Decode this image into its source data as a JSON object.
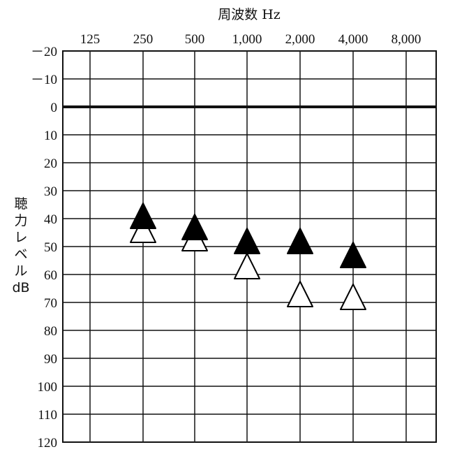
{
  "chart_data": {
    "type": "scatter",
    "title": "",
    "xlabel": "周波数 Hz",
    "ylabel_lines": [
      "聴",
      "力",
      "レ",
      "ベ",
      "ル",
      "dB"
    ],
    "x_categories": [
      "125",
      "250",
      "500",
      "1,000",
      "2,000",
      "4,000",
      "8,000"
    ],
    "y_ticks": [
      "－20",
      "－10",
      "0",
      "10",
      "20",
      "30",
      "40",
      "50",
      "60",
      "70",
      "80",
      "90",
      "100",
      "110",
      "120"
    ],
    "ylim": [
      -20,
      120
    ],
    "y_inverted": true,
    "grid": true,
    "reference_line": 0,
    "series": [
      {
        "marker": "filled-triangle",
        "color": "#000000",
        "points": [
          {
            "x": "250",
            "y": 38
          },
          {
            "x": "500",
            "y": 42
          },
          {
            "x": "1,000",
            "y": 47
          },
          {
            "x": "2,000",
            "y": 47
          },
          {
            "x": "4,000",
            "y": 52
          }
        ]
      },
      {
        "marker": "open-triangle",
        "color": "#000000",
        "points": [
          {
            "x": "250",
            "y": 43
          },
          {
            "x": "500",
            "y": 46
          },
          {
            "x": "1,000",
            "y": 56
          },
          {
            "x": "2,000",
            "y": 66
          },
          {
            "x": "4,000",
            "y": 67
          }
        ]
      }
    ]
  }
}
